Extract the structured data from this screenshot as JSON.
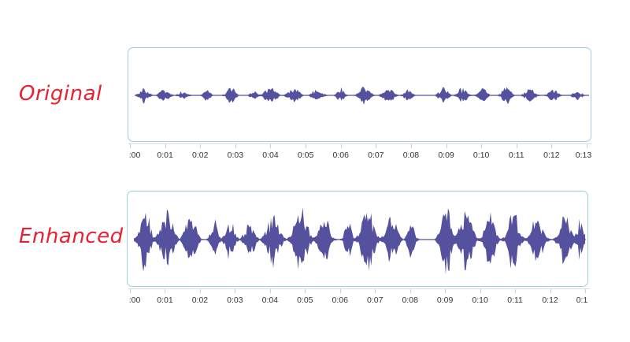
{
  "rows": [
    {
      "label": "Original",
      "tick_labels": [
        ":00",
        "0:01",
        "0:02",
        "0:03",
        "0:04",
        "0:05",
        "0:06",
        "0:07",
        "0:08",
        "0:09",
        "0:10",
        "0:11",
        "0:12",
        "0:13"
      ]
    },
    {
      "label": "Enhanced",
      "tick_labels": [
        ":00",
        "0:01",
        "0:02",
        "0:03",
        "0:04",
        "0:05",
        "0:06",
        "0:07",
        "0:08",
        "0:09",
        "0:10",
        "0:11",
        "0:12",
        "0:1"
      ]
    }
  ],
  "colors": {
    "label_text": "#e8202f",
    "waveform": "#55519f",
    "panel_border": "#9ecfd9"
  }
}
